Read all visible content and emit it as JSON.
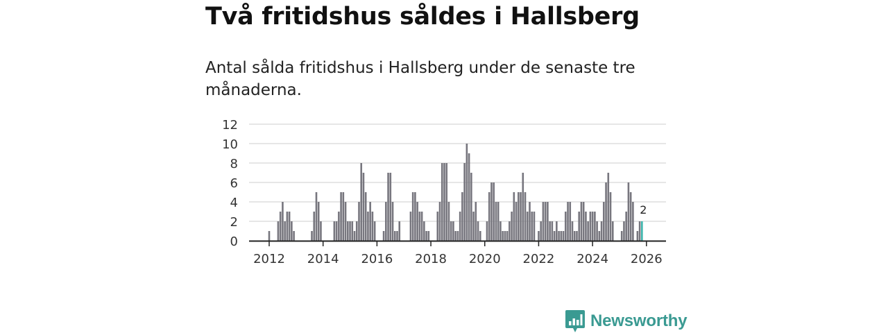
{
  "header": {
    "title": "Två fritidshus såldes i Hallsberg",
    "subtitle": "Antal sålda fritidshus i Hallsberg under de senaste tre månaderna."
  },
  "brand": {
    "name": "Newsworthy",
    "icon": "bar-chart-speech-bubble-icon"
  },
  "colors": {
    "bar": "#77767e",
    "highlight": "#3db5ad",
    "grid": "#dddddd",
    "axis": "#222222",
    "brand": "#3a9a92"
  },
  "chart_data": {
    "type": "bar",
    "title": "Två fritidshus såldes i Hallsberg",
    "subtitle": "Antal sålda fritidshus i Hallsberg under de senaste tre månaderna.",
    "xlabel": "",
    "ylabel": "",
    "ylim": [
      0,
      12
    ],
    "yticks": [
      0,
      2,
      4,
      6,
      8,
      10,
      12
    ],
    "xticks": [
      "2012",
      "2014",
      "2016",
      "2018",
      "2020",
      "2022",
      "2024",
      "2026"
    ],
    "grid": true,
    "start": "2011-01",
    "frequency": "monthly",
    "highlight_label": "2",
    "values": [
      0,
      0,
      0,
      0,
      0,
      0,
      0,
      0,
      0,
      0,
      0,
      0,
      1,
      0,
      0,
      0,
      2,
      3,
      4,
      2,
      3,
      3,
      2,
      1,
      0,
      0,
      0,
      0,
      0,
      0,
      0,
      1,
      3,
      5,
      4,
      2,
      0,
      0,
      0,
      0,
      0,
      2,
      2,
      3,
      5,
      5,
      4,
      2,
      2,
      2,
      1,
      2,
      4,
      8,
      7,
      5,
      3,
      4,
      3,
      2,
      0,
      0,
      0,
      1,
      4,
      7,
      7,
      4,
      1,
      1,
      2,
      0,
      0,
      0,
      0,
      3,
      5,
      5,
      4,
      3,
      3,
      2,
      1,
      1,
      0,
      0,
      0,
      3,
      4,
      8,
      8,
      8,
      4,
      2,
      2,
      1,
      1,
      3,
      5,
      8,
      10,
      9,
      7,
      3,
      4,
      2,
      1,
      0,
      0,
      2,
      5,
      6,
      6,
      4,
      4,
      2,
      1,
      1,
      1,
      2,
      3,
      5,
      4,
      5,
      5,
      7,
      5,
      3,
      4,
      3,
      3,
      0,
      1,
      2,
      4,
      4,
      4,
      2,
      2,
      1,
      2,
      1,
      1,
      1,
      3,
      4,
      4,
      2,
      1,
      1,
      3,
      4,
      4,
      3,
      2,
      3,
      3,
      3,
      2,
      1,
      2,
      4,
      6,
      7,
      5,
      2,
      0,
      0,
      0,
      1,
      2,
      3,
      6,
      5,
      4,
      0,
      1,
      2,
      2
    ]
  }
}
